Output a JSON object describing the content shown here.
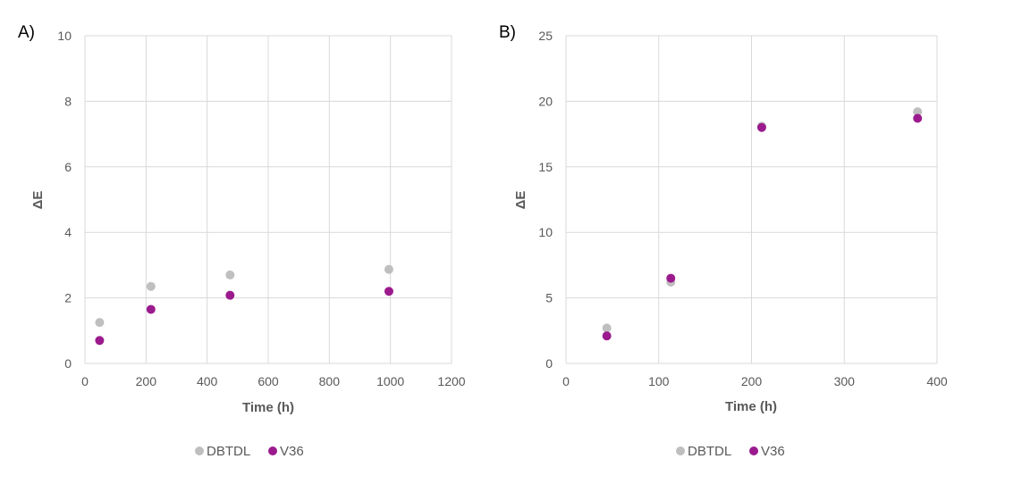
{
  "chart_data": [
    {
      "type": "scatter",
      "panel_label": "A)",
      "xlabel": "Time (h)",
      "ylabel": "ΔE",
      "xlim": [
        0,
        1200
      ],
      "ylim": [
        0,
        10
      ],
      "x_ticks": [
        0,
        200,
        400,
        600,
        800,
        1000,
        1200
      ],
      "y_ticks": [
        0,
        2,
        4,
        6,
        8,
        10
      ],
      "grid": true,
      "legend_position": "bottom",
      "series": [
        {
          "name": "DBTDL",
          "color": "#bfbfbf",
          "points": [
            {
              "x": 48,
              "y": 1.25
            },
            {
              "x": 216,
              "y": 2.35
            },
            {
              "x": 475,
              "y": 2.7
            },
            {
              "x": 995,
              "y": 2.87
            }
          ]
        },
        {
          "name": "V36",
          "color": "#9b1b8e",
          "points": [
            {
              "x": 48,
              "y": 0.7
            },
            {
              "x": 216,
              "y": 1.65
            },
            {
              "x": 475,
              "y": 2.08
            },
            {
              "x": 995,
              "y": 2.2
            }
          ]
        }
      ]
    },
    {
      "type": "scatter",
      "panel_label": "B)",
      "xlabel": "Time (h)",
      "ylabel": "ΔE",
      "xlim": [
        0,
        400
      ],
      "ylim": [
        0,
        25
      ],
      "x_ticks": [
        0,
        100,
        200,
        300,
        400
      ],
      "y_ticks": [
        0,
        5,
        10,
        15,
        20,
        25
      ],
      "grid": true,
      "legend_position": "bottom",
      "series": [
        {
          "name": "DBTDL",
          "color": "#bfbfbf",
          "points": [
            {
              "x": 44,
              "y": 2.7
            },
            {
              "x": 113,
              "y": 6.2
            },
            {
              "x": 211,
              "y": 18.1
            },
            {
              "x": 379,
              "y": 19.2
            }
          ]
        },
        {
          "name": "V36",
          "color": "#9b1b8e",
          "points": [
            {
              "x": 44,
              "y": 2.1
            },
            {
              "x": 113,
              "y": 6.5
            },
            {
              "x": 211,
              "y": 18.0
            },
            {
              "x": 379,
              "y": 18.7
            }
          ]
        }
      ]
    }
  ]
}
